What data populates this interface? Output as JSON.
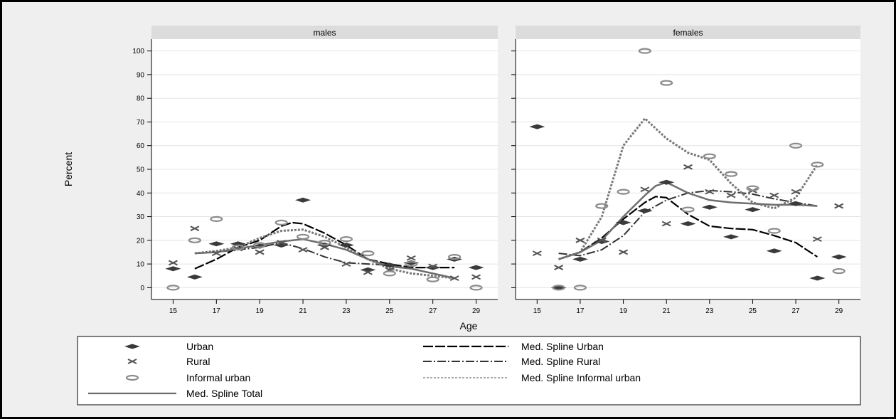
{
  "chart_data": {
    "type": "scatter",
    "ylabel": "Percent",
    "xlabel": "Age",
    "xticks": [
      15,
      17,
      19,
      21,
      23,
      25,
      27,
      29
    ],
    "yticks": [
      0,
      10,
      20,
      30,
      40,
      50,
      60,
      70,
      80,
      90,
      100
    ],
    "xlim": [
      14,
      30
    ],
    "ylim": [
      -5,
      105
    ],
    "grid": true,
    "legend_position": "bottom",
    "panels": [
      {
        "title": "males",
        "series": [
          {
            "name": "Urban",
            "kind": "marker",
            "x": [
              15,
              16,
              17,
              18,
              19,
              20,
              21,
              22,
              23,
              24,
              25,
              26,
              27,
              28,
              29
            ],
            "y": [
              8,
              4.5,
              18.5,
              18.5,
              17.5,
              18,
              37,
              18,
              18,
              7.5,
              9.5,
              10.5,
              8.5,
              12,
              8.5
            ]
          },
          {
            "name": "Rural",
            "kind": "marker",
            "x": [
              15,
              16,
              17,
              18,
              19,
              20,
              21,
              22,
              23,
              24,
              25,
              26,
              27,
              28,
              29
            ],
            "y": [
              10.5,
              25,
              14.5,
              16.5,
              15,
              19,
              16,
              17,
              10,
              6.5,
              7.5,
              12.5,
              9,
              4,
              4.5
            ]
          },
          {
            "name": "Informal urban",
            "kind": "marker",
            "x": [
              15,
              16,
              17,
              18,
              19,
              20,
              21,
              22,
              23,
              24,
              25,
              26,
              27,
              28,
              29
            ],
            "y": [
              0,
              20,
              29,
              17,
              18,
              27.5,
              21.5,
              19,
              20.5,
              14.5,
              6,
              10,
              3.5,
              13,
              0
            ]
          },
          {
            "name": "Med. Spline Urban",
            "kind": "line",
            "x": [
              16,
              17,
              18,
              19,
              20,
              20.5,
              21,
              22,
              23,
              24,
              25,
              26,
              27,
              28
            ],
            "y": [
              8,
              12,
              17,
              20,
              26,
              27.5,
              27,
              23,
              18,
              12,
              10,
              8.5,
              8.5,
              8.5
            ]
          },
          {
            "name": "Med. Spline Rural",
            "kind": "line",
            "x": [
              16,
              17,
              18,
              19,
              20,
              21,
              22,
              23,
              24,
              25,
              26,
              27,
              28
            ],
            "y": [
              14.5,
              15,
              16,
              17,
              19,
              16.5,
              13,
              10.5,
              10,
              9.5,
              8,
              6,
              4
            ]
          },
          {
            "name": "Med. Spline Informal urban",
            "kind": "line",
            "x": [
              16,
              17,
              18,
              19,
              20,
              21,
              22,
              23,
              24,
              25,
              26,
              27,
              28
            ],
            "y": [
              14.5,
              15.5,
              17,
              21,
              24,
              24.5,
              21.5,
              17,
              12,
              8,
              6,
              5,
              4
            ]
          },
          {
            "name": "Med. Spline Total",
            "kind": "line",
            "x": [
              16,
              17,
              18,
              19,
              20,
              21,
              22,
              23,
              24,
              25,
              26,
              27,
              28
            ],
            "y": [
              14.5,
              15,
              16.5,
              18,
              19.5,
              20.5,
              18.5,
              16,
              12,
              9,
              8,
              6,
              4
            ]
          }
        ]
      },
      {
        "title": "females",
        "series": [
          {
            "name": "Urban",
            "kind": "marker",
            "x": [
              15,
              16,
              17,
              18,
              19,
              20,
              21,
              22,
              23,
              24,
              25,
              26,
              27,
              28,
              29
            ],
            "y": [
              68,
              0,
              12,
              19.5,
              27.5,
              32.5,
              44.5,
              27,
              34,
              21.5,
              33,
              15.5,
              35.5,
              4,
              13
            ]
          },
          {
            "name": "Rural",
            "kind": "marker",
            "x": [
              15,
              16,
              17,
              18,
              19,
              20,
              21,
              22,
              23,
              24,
              25,
              26,
              27,
              28,
              29
            ],
            "y": [
              14.5,
              8.5,
              20,
              20,
              15,
              41.5,
              27,
              51,
              40.5,
              39,
              41,
              39,
              40.5,
              20.5,
              34.5
            ]
          },
          {
            "name": "Informal urban",
            "kind": "marker",
            "x": [
              16,
              17,
              18,
              19,
              20,
              21,
              22,
              23,
              24,
              25,
              26,
              27,
              28,
              29
            ],
            "y": [
              0,
              0,
              34.5,
              40.5,
              100,
              86.5,
              33,
              55.5,
              48,
              42,
              24,
              60,
              52,
              7
            ]
          },
          {
            "name": "Med. Spline Urban",
            "kind": "line",
            "x": [
              16,
              17,
              18,
              19,
              20,
              20.5,
              21,
              22,
              23,
              24,
              25,
              26,
              27,
              28
            ],
            "y": [
              12,
              15,
              21,
              29,
              36,
              38.5,
              38,
              31,
              26,
              25,
              24.5,
              22,
              19,
              13
            ]
          },
          {
            "name": "Med. Spline Rural",
            "kind": "line",
            "x": [
              16,
              17,
              18,
              19,
              20,
              21,
              22,
              23,
              24,
              25,
              26,
              27,
              28
            ],
            "y": [
              14.5,
              13.5,
              16,
              22,
              32,
              37,
              40,
              41,
              40.5,
              39.5,
              37.5,
              36,
              34.5
            ]
          },
          {
            "name": "Med. Spline Informal urban",
            "kind": "line",
            "x": [
              16,
              17,
              18,
              19,
              20,
              21,
              22,
              23,
              24,
              25,
              26,
              27,
              28
            ],
            "y": [
              12,
              15,
              30,
              60,
              71.5,
              63,
              57,
              54,
              44,
              36,
              33.5,
              38,
              52
            ]
          },
          {
            "name": "Med. Spline Total",
            "kind": "line",
            "x": [
              16,
              17,
              18,
              19,
              20,
              20.5,
              21,
              22,
              23,
              24,
              25,
              26,
              27,
              28
            ],
            "y": [
              12,
              15,
              20,
              30,
              39,
              43,
              44.5,
              40,
              37,
              36,
              35.5,
              35,
              35,
              34.5
            ]
          }
        ]
      }
    ],
    "legend": [
      {
        "label": "Urban",
        "symbol": "diamond"
      },
      {
        "label": "Rural",
        "symbol": "x"
      },
      {
        "label": "Informal urban",
        "symbol": "hollow-oval"
      },
      {
        "label": "Med. Spline Total",
        "symbol": "solid-line"
      },
      {
        "label": "Med. Spline Urban",
        "symbol": "long-dash"
      },
      {
        "label": "Med. Spline Rural",
        "symbol": "dash-dot"
      },
      {
        "label": "Med. Spline Informal urban",
        "symbol": "short-dash"
      }
    ]
  },
  "colors": {
    "background": "#efefef",
    "plot_area": "#ffffff",
    "strip": "#dcdcdc",
    "urban_marker": "#3a3a3a",
    "rural_marker": "#555555",
    "informal_marker": "#8c8c8c",
    "spline_urban": "#000000",
    "spline_rural": "#333333",
    "spline_informal": "#777777",
    "spline_total": "#6e6e6e"
  }
}
